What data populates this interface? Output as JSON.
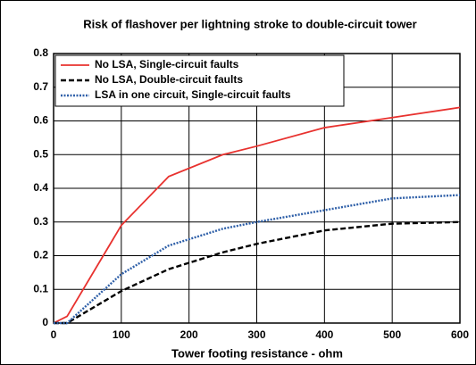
{
  "chart_data": {
    "type": "line",
    "title": "Risk of flashover per lightning stroke to double-circuit tower",
    "x_label": "Tower footing resistance - ohm",
    "x": [
      0,
      20,
      100,
      170,
      250,
      300,
      400,
      500,
      600
    ],
    "series": [
      {
        "name": "No LSA, Single-circuit faults",
        "color": "#e8322f",
        "dash": "solid",
        "values": [
          0,
          0.02,
          0.29,
          0.435,
          0.5,
          0.525,
          0.58,
          0.61,
          0.64
        ]
      },
      {
        "name": "No LSA, Double-circuit faults",
        "color": "#000000",
        "dash": "dashed",
        "values": [
          0,
          0,
          0.095,
          0.16,
          0.21,
          0.235,
          0.275,
          0.295,
          0.3
        ]
      },
      {
        "name": "LSA in one circuit, Single-circuit faults",
        "color": "#2e5fa8",
        "dash": "dotted",
        "values": [
          0,
          0,
          0.145,
          0.23,
          0.28,
          0.3,
          0.335,
          0.37,
          0.38
        ]
      }
    ],
    "xlim": [
      0,
      600
    ],
    "xticks": [
      0,
      100,
      200,
      300,
      400,
      500,
      600
    ],
    "ylim": [
      0,
      0.8
    ],
    "yticks": [
      0,
      0.1,
      0.2,
      0.3,
      0.4,
      0.5,
      0.6,
      0.7,
      0.8
    ],
    "grid": true,
    "legend": "upper left"
  }
}
